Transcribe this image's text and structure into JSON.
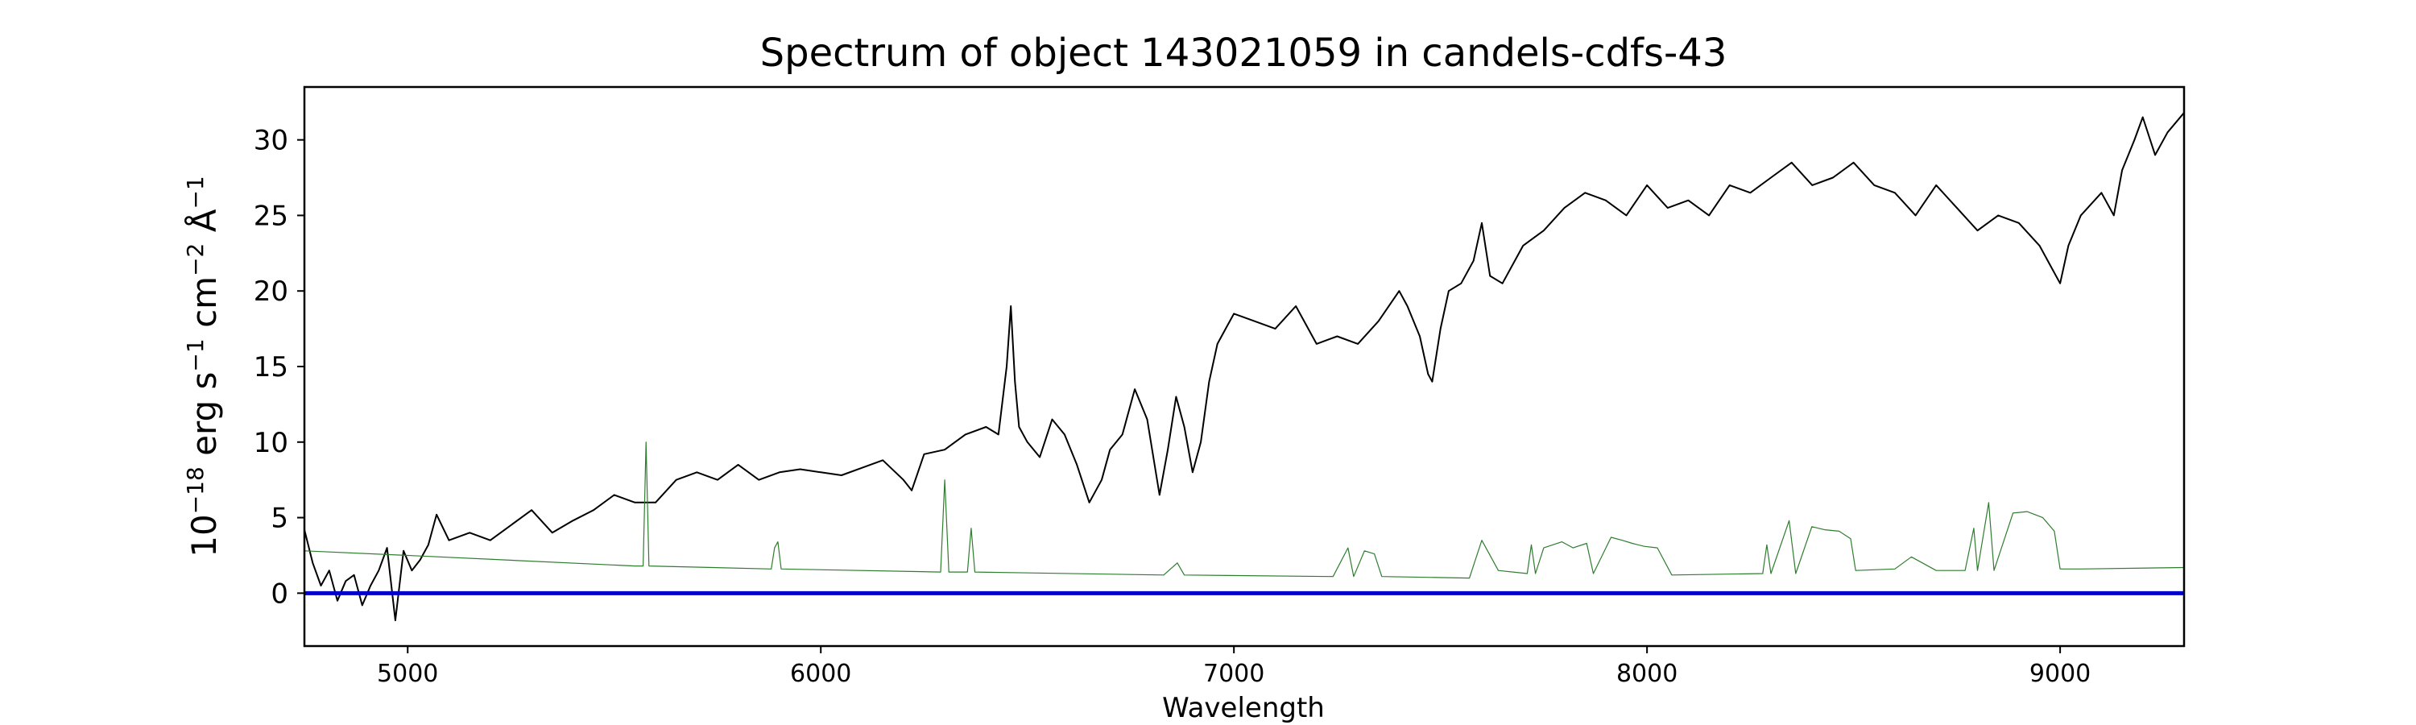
{
  "chart_data": {
    "type": "line",
    "title": "Spectrum of object 143021059 in candels-cdfs-43",
    "xlabel": "Wavelength",
    "ylabel": "10^-18 erg s^-1 cm^-2 Å^-1",
    "xlim": [
      4750,
      9300
    ],
    "ylim": [
      -3.5,
      33.5
    ],
    "x_ticks": [
      5000,
      6000,
      7000,
      8000,
      9000
    ],
    "y_ticks": [
      0,
      5,
      10,
      15,
      20,
      25,
      30
    ],
    "grid": false,
    "legend": "none",
    "series": [
      {
        "color": "#000000",
        "line_width": 2,
        "points": [
          [
            4750,
            4.2
          ],
          [
            4770,
            2.0
          ],
          [
            4790,
            0.5
          ],
          [
            4810,
            1.5
          ],
          [
            4830,
            -0.5
          ],
          [
            4850,
            0.8
          ],
          [
            4870,
            1.2
          ],
          [
            4890,
            -0.8
          ],
          [
            4910,
            0.5
          ],
          [
            4930,
            1.5
          ],
          [
            4950,
            3.0
          ],
          [
            4970,
            -1.8
          ],
          [
            4990,
            2.8
          ],
          [
            5010,
            1.5
          ],
          [
            5030,
            2.2
          ],
          [
            5050,
            3.2
          ],
          [
            5070,
            5.2
          ],
          [
            5100,
            3.5
          ],
          [
            5150,
            4.0
          ],
          [
            5200,
            3.5
          ],
          [
            5250,
            4.5
          ],
          [
            5300,
            5.5
          ],
          [
            5350,
            4.0
          ],
          [
            5400,
            4.8
          ],
          [
            5450,
            5.5
          ],
          [
            5500,
            6.5
          ],
          [
            5550,
            6.0
          ],
          [
            5600,
            6.0
          ],
          [
            5650,
            7.5
          ],
          [
            5700,
            8.0
          ],
          [
            5750,
            7.5
          ],
          [
            5800,
            8.5
          ],
          [
            5850,
            7.5
          ],
          [
            5900,
            8.0
          ],
          [
            5950,
            8.2
          ],
          [
            6000,
            8.0
          ],
          [
            6050,
            7.8
          ],
          [
            6100,
            8.3
          ],
          [
            6150,
            8.8
          ],
          [
            6200,
            7.5
          ],
          [
            6220,
            6.8
          ],
          [
            6250,
            9.2
          ],
          [
            6300,
            9.5
          ],
          [
            6350,
            10.5
          ],
          [
            6400,
            11.0
          ],
          [
            6430,
            10.5
          ],
          [
            6450,
            15.0
          ],
          [
            6460,
            19.0
          ],
          [
            6470,
            14.0
          ],
          [
            6480,
            11.0
          ],
          [
            6500,
            10.0
          ],
          [
            6530,
            9.0
          ],
          [
            6560,
            11.5
          ],
          [
            6590,
            10.5
          ],
          [
            6620,
            8.5
          ],
          [
            6650,
            6.0
          ],
          [
            6680,
            7.5
          ],
          [
            6700,
            9.5
          ],
          [
            6730,
            10.5
          ],
          [
            6760,
            13.5
          ],
          [
            6790,
            11.5
          ],
          [
            6820,
            6.5
          ],
          [
            6840,
            9.5
          ],
          [
            6860,
            13.0
          ],
          [
            6880,
            11.0
          ],
          [
            6900,
            8.0
          ],
          [
            6920,
            10.0
          ],
          [
            6940,
            14.0
          ],
          [
            6960,
            16.5
          ],
          [
            6980,
            17.5
          ],
          [
            7000,
            18.5
          ],
          [
            7050,
            18.0
          ],
          [
            7100,
            17.5
          ],
          [
            7150,
            19.0
          ],
          [
            7200,
            16.5
          ],
          [
            7250,
            17.0
          ],
          [
            7300,
            16.5
          ],
          [
            7350,
            18.0
          ],
          [
            7400,
            20.0
          ],
          [
            7420,
            19.0
          ],
          [
            7450,
            17.0
          ],
          [
            7470,
            14.5
          ],
          [
            7480,
            14.0
          ],
          [
            7500,
            17.5
          ],
          [
            7520,
            20.0
          ],
          [
            7550,
            20.5
          ],
          [
            7580,
            22.0
          ],
          [
            7600,
            24.5
          ],
          [
            7620,
            21.0
          ],
          [
            7650,
            20.5
          ],
          [
            7700,
            23.0
          ],
          [
            7750,
            24.0
          ],
          [
            7800,
            25.5
          ],
          [
            7850,
            26.5
          ],
          [
            7900,
            26.0
          ],
          [
            7950,
            25.0
          ],
          [
            8000,
            27.0
          ],
          [
            8050,
            25.5
          ],
          [
            8100,
            26.0
          ],
          [
            8150,
            25.0
          ],
          [
            8200,
            27.0
          ],
          [
            8250,
            26.5
          ],
          [
            8300,
            27.5
          ],
          [
            8350,
            28.5
          ],
          [
            8400,
            27.0
          ],
          [
            8450,
            27.5
          ],
          [
            8500,
            28.5
          ],
          [
            8550,
            27.0
          ],
          [
            8600,
            26.5
          ],
          [
            8650,
            25.0
          ],
          [
            8700,
            27.0
          ],
          [
            8750,
            25.5
          ],
          [
            8800,
            24.0
          ],
          [
            8850,
            25.0
          ],
          [
            8900,
            24.5
          ],
          [
            8950,
            23.0
          ],
          [
            8980,
            21.5
          ],
          [
            9000,
            20.5
          ],
          [
            9020,
            23.0
          ],
          [
            9050,
            25.0
          ],
          [
            9100,
            26.5
          ],
          [
            9130,
            25.0
          ],
          [
            9150,
            28.0
          ],
          [
            9180,
            30.0
          ],
          [
            9200,
            31.5
          ],
          [
            9230,
            29.0
          ],
          [
            9260,
            30.5
          ],
          [
            9300,
            31.8
          ]
        ]
      },
      {
        "color": "#2e7d2e",
        "line_width": 1.2,
        "points": [
          [
            4750,
            2.8
          ],
          [
            5000,
            2.5
          ],
          [
            5550,
            1.8
          ],
          [
            5570,
            1.8
          ],
          [
            5577,
            10.0
          ],
          [
            5584,
            1.8
          ],
          [
            5880,
            1.6
          ],
          [
            5888,
            3.0
          ],
          [
            5896,
            3.4
          ],
          [
            5904,
            1.6
          ],
          [
            6290,
            1.4
          ],
          [
            6300,
            7.5
          ],
          [
            6310,
            1.4
          ],
          [
            6355,
            1.4
          ],
          [
            6364,
            4.3
          ],
          [
            6373,
            1.4
          ],
          [
            6830,
            1.2
          ],
          [
            6863,
            2.0
          ],
          [
            6880,
            1.2
          ],
          [
            7240,
            1.1
          ],
          [
            7276,
            3.0
          ],
          [
            7290,
            1.1
          ],
          [
            7316,
            2.8
          ],
          [
            7340,
            2.6
          ],
          [
            7358,
            1.1
          ],
          [
            7570,
            1.0
          ],
          [
            7600,
            3.5
          ],
          [
            7640,
            1.5
          ],
          [
            7710,
            1.3
          ],
          [
            7720,
            3.2
          ],
          [
            7730,
            1.3
          ],
          [
            7750,
            3.0
          ],
          [
            7794,
            3.4
          ],
          [
            7821,
            3.0
          ],
          [
            7854,
            3.3
          ],
          [
            7870,
            1.3
          ],
          [
            7913,
            3.7
          ],
          [
            7940,
            3.5
          ],
          [
            7964,
            3.3
          ],
          [
            7993,
            3.1
          ],
          [
            8025,
            3.0
          ],
          [
            8060,
            1.2
          ],
          [
            8280,
            1.3
          ],
          [
            8290,
            3.2
          ],
          [
            8300,
            1.3
          ],
          [
            8344,
            4.8
          ],
          [
            8360,
            1.3
          ],
          [
            8399,
            4.4
          ],
          [
            8430,
            4.2
          ],
          [
            8465,
            4.1
          ],
          [
            8493,
            3.6
          ],
          [
            8505,
            1.5
          ],
          [
            8600,
            1.6
          ],
          [
            8640,
            2.4
          ],
          [
            8700,
            1.5
          ],
          [
            8770,
            1.5
          ],
          [
            8791,
            4.3
          ],
          [
            8800,
            1.5
          ],
          [
            8827,
            6.0
          ],
          [
            8840,
            1.5
          ],
          [
            8886,
            5.3
          ],
          [
            8920,
            5.4
          ],
          [
            8958,
            5.0
          ],
          [
            8986,
            4.1
          ],
          [
            9000,
            1.6
          ],
          [
            9050,
            1.6
          ],
          [
            9300,
            1.7
          ]
        ]
      },
      {
        "color": "#0000cc",
        "line_width": 5,
        "points": [
          [
            4750,
            0
          ],
          [
            9300,
            0
          ]
        ]
      }
    ]
  }
}
